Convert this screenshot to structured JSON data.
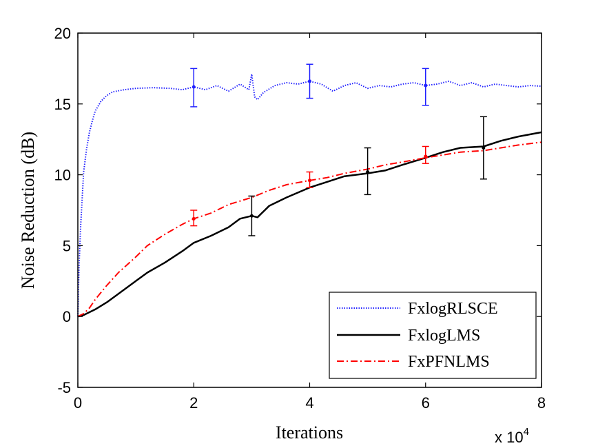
{
  "chart_data": {
    "type": "line",
    "title": "",
    "xlabel": "Iterations",
    "ylabel": "Noise Reduction (dB)",
    "x_multiplier_label": "x 10",
    "x_multiplier_exp": "4",
    "xlim": [
      0,
      8
    ],
    "ylim": [
      -5,
      20
    ],
    "x_ticks": [
      0,
      2,
      4,
      6,
      8
    ],
    "x_tick_labels": [
      "0",
      "2",
      "4",
      "6",
      "8"
    ],
    "y_ticks": [
      -5,
      0,
      5,
      10,
      15,
      20
    ],
    "y_tick_labels": [
      "-5",
      "0",
      "5",
      "10",
      "15",
      "20"
    ],
    "grid": false,
    "legend_position": "bottom-right",
    "series": [
      {
        "name": "FxlogRLSCE",
        "color": "#2020ff",
        "style": "dotted",
        "x": [
          0,
          0.02,
          0.05,
          0.1,
          0.15,
          0.2,
          0.25,
          0.3,
          0.4,
          0.5,
          0.6,
          0.8,
          1.0,
          1.3,
          1.6,
          1.8,
          2.0,
          2.2,
          2.4,
          2.6,
          2.8,
          2.95,
          3.0,
          3.05,
          3.1,
          3.2,
          3.4,
          3.6,
          3.8,
          4.0,
          4.2,
          4.4,
          4.6,
          4.8,
          5.0,
          5.2,
          5.4,
          5.6,
          5.8,
          6.0,
          6.2,
          6.4,
          6.6,
          6.8,
          7.0,
          7.2,
          7.4,
          7.6,
          7.8,
          8.0
        ],
        "y": [
          0,
          3.5,
          6.5,
          10.2,
          11.8,
          13.0,
          13.8,
          14.5,
          15.2,
          15.6,
          15.85,
          16.0,
          16.1,
          16.15,
          16.1,
          16.0,
          16.2,
          16.0,
          16.3,
          15.9,
          16.4,
          16.0,
          17.1,
          15.5,
          15.3,
          15.8,
          16.3,
          16.5,
          16.4,
          16.6,
          16.4,
          15.9,
          16.3,
          16.5,
          16.1,
          16.3,
          16.2,
          16.4,
          16.5,
          16.3,
          16.4,
          16.6,
          16.3,
          16.5,
          16.2,
          16.4,
          16.3,
          16.2,
          16.3,
          16.25
        ],
        "error_bars": [
          {
            "x": 2,
            "y": 16.2,
            "low": 14.8,
            "high": 17.5
          },
          {
            "x": 4,
            "y": 16.6,
            "low": 15.4,
            "high": 17.8
          },
          {
            "x": 6,
            "y": 16.3,
            "low": 14.9,
            "high": 17.5
          }
        ]
      },
      {
        "name": "FxlogLMS",
        "color": "#000000",
        "style": "solid",
        "x": [
          0,
          0.1,
          0.2,
          0.3,
          0.5,
          0.8,
          1.0,
          1.2,
          1.5,
          1.8,
          2.0,
          2.3,
          2.6,
          2.8,
          3.0,
          3.1,
          3.3,
          3.6,
          4.0,
          4.3,
          4.6,
          4.8,
          5.0,
          5.3,
          5.6,
          6.0,
          6.3,
          6.6,
          7.0,
          7.3,
          7.6,
          8.0
        ],
        "y": [
          0,
          0.1,
          0.3,
          0.5,
          1.0,
          1.9,
          2.5,
          3.1,
          3.8,
          4.6,
          5.2,
          5.7,
          6.3,
          6.9,
          7.1,
          7.0,
          7.8,
          8.4,
          9.1,
          9.5,
          9.9,
          10.0,
          10.1,
          10.3,
          10.7,
          11.2,
          11.6,
          11.9,
          12.0,
          12.4,
          12.7,
          13.0
        ],
        "error_bars": [
          {
            "x": 3,
            "y": 7.1,
            "low": 5.7,
            "high": 8.5
          },
          {
            "x": 5,
            "y": 10.2,
            "low": 8.6,
            "high": 11.9
          },
          {
            "x": 7,
            "y": 11.9,
            "low": 9.7,
            "high": 14.1
          }
        ]
      },
      {
        "name": "FxPFNLMS",
        "color": "#ff0000",
        "style": "dashdot",
        "x": [
          0,
          0.1,
          0.2,
          0.3,
          0.5,
          0.7,
          1.0,
          1.2,
          1.5,
          1.8,
          2.0,
          2.3,
          2.6,
          3.0,
          3.3,
          3.6,
          4.0,
          4.3,
          4.6,
          5.0,
          5.3,
          5.6,
          6.0,
          6.3,
          6.6,
          7.0,
          7.3,
          7.6,
          8.0
        ],
        "y": [
          0,
          0.2,
          0.6,
          1.2,
          2.2,
          3.1,
          4.2,
          5.0,
          5.8,
          6.5,
          6.9,
          7.3,
          7.9,
          8.4,
          8.9,
          9.3,
          9.6,
          9.8,
          10.1,
          10.4,
          10.7,
          10.9,
          11.2,
          11.4,
          11.6,
          11.7,
          11.9,
          12.1,
          12.3
        ],
        "error_bars": [
          {
            "x": 2,
            "y": 6.9,
            "low": 6.4,
            "high": 7.5
          },
          {
            "x": 4,
            "y": 9.6,
            "low": 9.1,
            "high": 10.2
          },
          {
            "x": 6,
            "y": 11.3,
            "low": 10.8,
            "high": 12.0
          }
        ]
      }
    ]
  }
}
